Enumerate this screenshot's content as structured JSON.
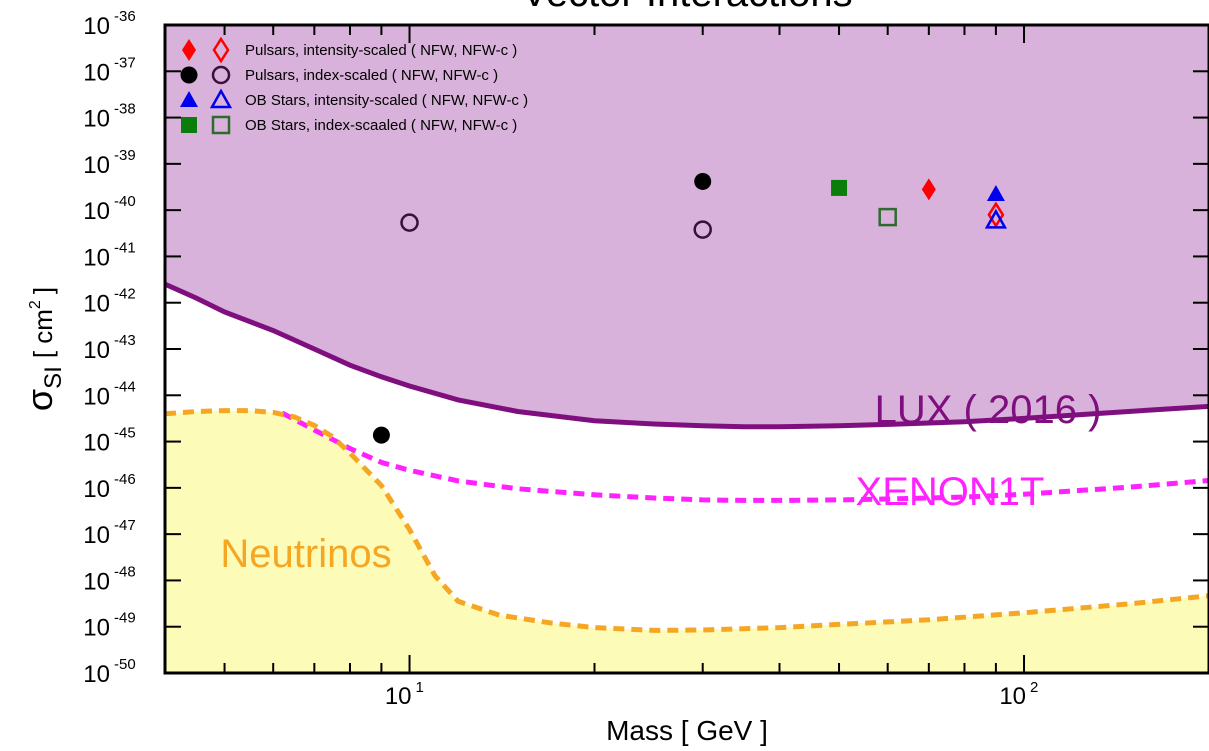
{
  "chart_data": {
    "type": "scatter",
    "title": "Vector Interactions",
    "xlabel": "Mass [ GeV ]",
    "ylabel_symbol": "σ",
    "ylabel_sub": "SI",
    "ylabel_unit_open": "[ cm",
    "ylabel_unit_exp": "2",
    "ylabel_unit_close": "]",
    "x_scale": "log",
    "y_scale": "log",
    "xlim": [
      4,
      200
    ],
    "ylim_exp": [
      -50,
      -36
    ],
    "y_ticks": [
      {
        "exp": -36,
        "base": "10",
        "sup": "-36"
      },
      {
        "exp": -37,
        "base": "10",
        "sup": "-37"
      },
      {
        "exp": -38,
        "base": "10",
        "sup": "-38"
      },
      {
        "exp": -39,
        "base": "10",
        "sup": "-39"
      },
      {
        "exp": -40,
        "base": "10",
        "sup": "-40"
      },
      {
        "exp": -41,
        "base": "10",
        "sup": "-41"
      },
      {
        "exp": -42,
        "base": "10",
        "sup": "-42"
      },
      {
        "exp": -43,
        "base": "10",
        "sup": "-43"
      },
      {
        "exp": -44,
        "base": "10",
        "sup": "-44"
      },
      {
        "exp": -45,
        "base": "10",
        "sup": "-45"
      },
      {
        "exp": -46,
        "base": "10",
        "sup": "-46"
      },
      {
        "exp": -47,
        "base": "10",
        "sup": "-47"
      },
      {
        "exp": -48,
        "base": "10",
        "sup": "-48"
      },
      {
        "exp": -49,
        "base": "10",
        "sup": "-49"
      },
      {
        "exp": -50,
        "base": "10",
        "sup": "-50"
      }
    ],
    "x_ticks": [
      {
        "value": 10,
        "base": "10",
        "sup": "1"
      },
      {
        "value": 100,
        "base": "10",
        "sup": "2"
      }
    ],
    "colors": {
      "lux_fill": "#d8b2da",
      "lux_line": "#7f0f7f",
      "xenon_line": "#ff22ff",
      "neutrino_fill": "#fdfbb8",
      "neutrino_line": "#f5a623",
      "red": "#ff0000",
      "black": "#000000",
      "blue": "#0000ee",
      "green": "#0b7d0b",
      "green_open": "#2f6b2f",
      "purple_open": "#3a0f3a"
    },
    "curves": {
      "lux": {
        "label": "LUX ( 2016 )",
        "x": [
          4,
          4.5,
          5,
          6,
          7,
          8,
          9,
          10,
          12,
          15,
          20,
          25,
          30,
          35,
          40,
          50,
          60,
          80,
          100,
          130,
          160,
          200
        ],
        "y_exp": [
          -41.6,
          -41.9,
          -42.2,
          -42.6,
          -43.0,
          -43.35,
          -43.6,
          -43.8,
          -44.1,
          -44.35,
          -44.55,
          -44.62,
          -44.66,
          -44.68,
          -44.68,
          -44.66,
          -44.63,
          -44.57,
          -44.5,
          -44.4,
          -44.32,
          -44.24
        ]
      },
      "xenon1t": {
        "label": "XENON1T",
        "x": [
          6.2,
          7,
          8,
          9,
          10,
          12,
          15,
          20,
          25,
          30,
          35,
          40,
          50,
          60,
          80,
          100,
          150,
          200
        ],
        "y_exp": [
          -44.38,
          -44.75,
          -45.15,
          -45.45,
          -45.62,
          -45.85,
          -46.02,
          -46.15,
          -46.22,
          -46.26,
          -46.27,
          -46.27,
          -46.26,
          -46.24,
          -46.2,
          -46.14,
          -45.98,
          -45.84
        ]
      },
      "neutrinos": {
        "label": "Neutrinos",
        "x": [
          4,
          4.5,
          5,
          5.5,
          6,
          6.5,
          7,
          7.5,
          8,
          9,
          10,
          11,
          12,
          14,
          17,
          20,
          25,
          30,
          40,
          50,
          70,
          100,
          150,
          200
        ],
        "y_exp": [
          -44.4,
          -44.35,
          -44.33,
          -44.33,
          -44.37,
          -44.47,
          -44.65,
          -44.9,
          -45.25,
          -45.95,
          -46.9,
          -47.9,
          -48.45,
          -48.75,
          -48.92,
          -49.02,
          -49.08,
          -49.07,
          -49.02,
          -48.95,
          -48.85,
          -48.7,
          -48.5,
          -48.33
        ]
      }
    },
    "series": [
      {
        "name": "Pulsars, intensity-scaled ( NFW, NFW-c )",
        "marker": "diamond",
        "color": "#ff0000",
        "filled": {
          "x": [
            70
          ],
          "y_exp": [
            -39.55
          ]
        },
        "open": {
          "x": [
            90
          ],
          "y_exp": [
            -40.1
          ]
        }
      },
      {
        "name": "Pulsars, index-scaled ( NFW, NFW-c )",
        "marker": "circle",
        "color": "#000000",
        "filled": {
          "x": [
            30,
            9
          ],
          "y_exp": [
            -39.38,
            -44.86
          ]
        },
        "open": {
          "x": [
            10,
            30
          ],
          "y_exp": [
            -40.27,
            -40.42
          ]
        }
      },
      {
        "name": "OB Stars, intensity-scaled ( NFW, NFW-c )",
        "marker": "triangle",
        "color": "#0000ee",
        "filled": {
          "x": [
            90
          ],
          "y_exp": [
            -39.65
          ]
        },
        "open": {
          "x": [
            90
          ],
          "y_exp": [
            -40.22
          ]
        }
      },
      {
        "name": "OB Stars, index-scaaled ( NFW, NFW-c )",
        "marker": "square",
        "color": "#0b7d0b",
        "filled": {
          "x": [
            50
          ],
          "y_exp": [
            -39.52
          ]
        },
        "open": {
          "x": [
            60
          ],
          "y_exp": [
            -40.15
          ]
        }
      }
    ],
    "legend_position": "top-left",
    "grid": false
  }
}
